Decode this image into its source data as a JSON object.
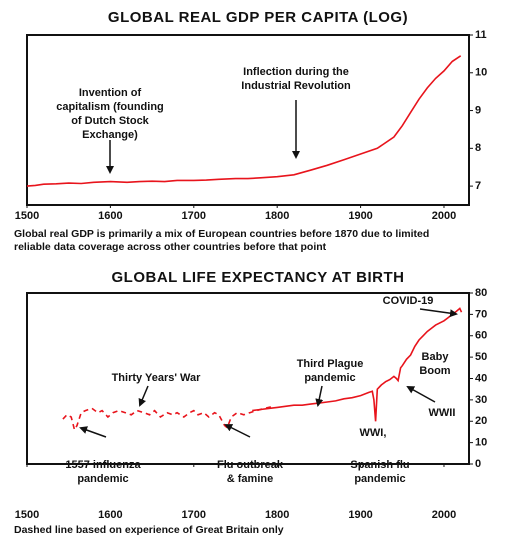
{
  "chart_data": [
    {
      "type": "line",
      "title": "GLOBAL REAL GDP PER CAPITA (LOG)",
      "xlim": [
        1500,
        2030
      ],
      "xticks": [
        1500,
        1600,
        1700,
        1800,
        1900,
        2000
      ],
      "ylim": [
        6.5,
        11
      ],
      "yticks": [
        7,
        8,
        9,
        10,
        11
      ],
      "grid": false,
      "series": [
        {
          "color": "#e8141c",
          "dash": false,
          "x": [
            1500,
            1510,
            1520,
            1535,
            1550,
            1565,
            1580,
            1600,
            1620,
            1635,
            1650,
            1665,
            1680,
            1700,
            1715,
            1730,
            1750,
            1765,
            1780,
            1800,
            1820,
            1840,
            1860,
            1880,
            1900,
            1920,
            1940,
            1950,
            1960,
            1970,
            1980,
            1990,
            2000,
            2010,
            2020
          ],
          "values": [
            7.0,
            7.02,
            7.05,
            7.06,
            7.08,
            7.07,
            7.1,
            7.12,
            7.1,
            7.12,
            7.13,
            7.12,
            7.15,
            7.15,
            7.16,
            7.18,
            7.2,
            7.2,
            7.22,
            7.25,
            7.3,
            7.42,
            7.55,
            7.7,
            7.85,
            8.0,
            8.3,
            8.6,
            8.95,
            9.3,
            9.6,
            9.85,
            10.05,
            10.3,
            10.45
          ]
        }
      ],
      "annotations": [
        [
          "Invention of",
          "capitalism (founding",
          "of Dutch Stock",
          "Exchange)"
        ],
        [
          "Inflection during the",
          "Industrial Revolution"
        ]
      ],
      "note": [
        "Global real GDP is primarily a mix of European countries before 1870 due to limited",
        "reliable data coverage across other countries before that point"
      ]
    },
    {
      "type": "line",
      "title": "GLOBAL LIFE EXPECTANCY AT BIRTH",
      "xlim": [
        1500,
        2030
      ],
      "xticks": [
        1500,
        1600,
        1700,
        1800,
        1900,
        2000
      ],
      "ylim": [
        0,
        80
      ],
      "yticks": [
        0,
        10,
        20,
        30,
        40,
        50,
        60,
        70,
        80
      ],
      "grid": false,
      "series": [
        {
          "color": "#e8141c",
          "dash": true,
          "x": [
            1543,
            1548,
            1553,
            1557,
            1560,
            1565,
            1570,
            1578,
            1585,
            1590,
            1597,
            1603,
            1610,
            1618,
            1625,
            1632,
            1640,
            1647,
            1653,
            1660,
            1668,
            1675,
            1680,
            1688,
            1695,
            1700,
            1705,
            1712,
            1718,
            1725,
            1730,
            1737,
            1740,
            1745,
            1752,
            1760,
            1767,
            1775,
            1785,
            1795
          ],
          "values": [
            21,
            23,
            22,
            16,
            18,
            24,
            25,
            26,
            24,
            25,
            22,
            24,
            25,
            24,
            23,
            25,
            24,
            23,
            25,
            22,
            24,
            23,
            24,
            22,
            24,
            25,
            23,
            24,
            22,
            24,
            23,
            18,
            17,
            22,
            24,
            23,
            24,
            25,
            26,
            27
          ]
        },
        {
          "color": "#e8141c",
          "dash": false,
          "x": [
            1770,
            1780,
            1790,
            1800,
            1810,
            1820,
            1830,
            1840,
            1850,
            1860,
            1870,
            1880,
            1890,
            1900,
            1910,
            1914,
            1916,
            1918,
            1920,
            1925,
            1930,
            1935,
            1940,
            1943,
            1945,
            1948,
            1950,
            1955,
            1960,
            1965,
            1970,
            1975,
            1980,
            1985,
            1990,
            1995,
            2000,
            2005,
            2010,
            2015,
            2019,
            2021
          ],
          "values": [
            25,
            25.5,
            26,
            26.5,
            27,
            27.5,
            27.5,
            28,
            28.5,
            29,
            29.5,
            30.5,
            31,
            32,
            33.5,
            34,
            30,
            20,
            35,
            37,
            38.5,
            39.5,
            41,
            40,
            39,
            45,
            46,
            49,
            51,
            55,
            58,
            60,
            62,
            63.5,
            65,
            66,
            67,
            68.5,
            70,
            71.5,
            72.8,
            71
          ]
        }
      ],
      "annotations": [
        [
          "COVID-19"
        ],
        [
          "Baby",
          "Boom"
        ],
        [
          "WWII"
        ],
        [
          "Third Plague",
          "pandemic"
        ],
        [
          "Thirty Years' War"
        ],
        [
          "WWI,"
        ],
        [
          "1557 influenza",
          "pandemic"
        ],
        [
          "Flu outbreak",
          "& famine"
        ],
        [
          "Spanish flu",
          "pandemic"
        ]
      ],
      "note": [
        "Dashed line based on experience of Great Britain only"
      ]
    }
  ]
}
